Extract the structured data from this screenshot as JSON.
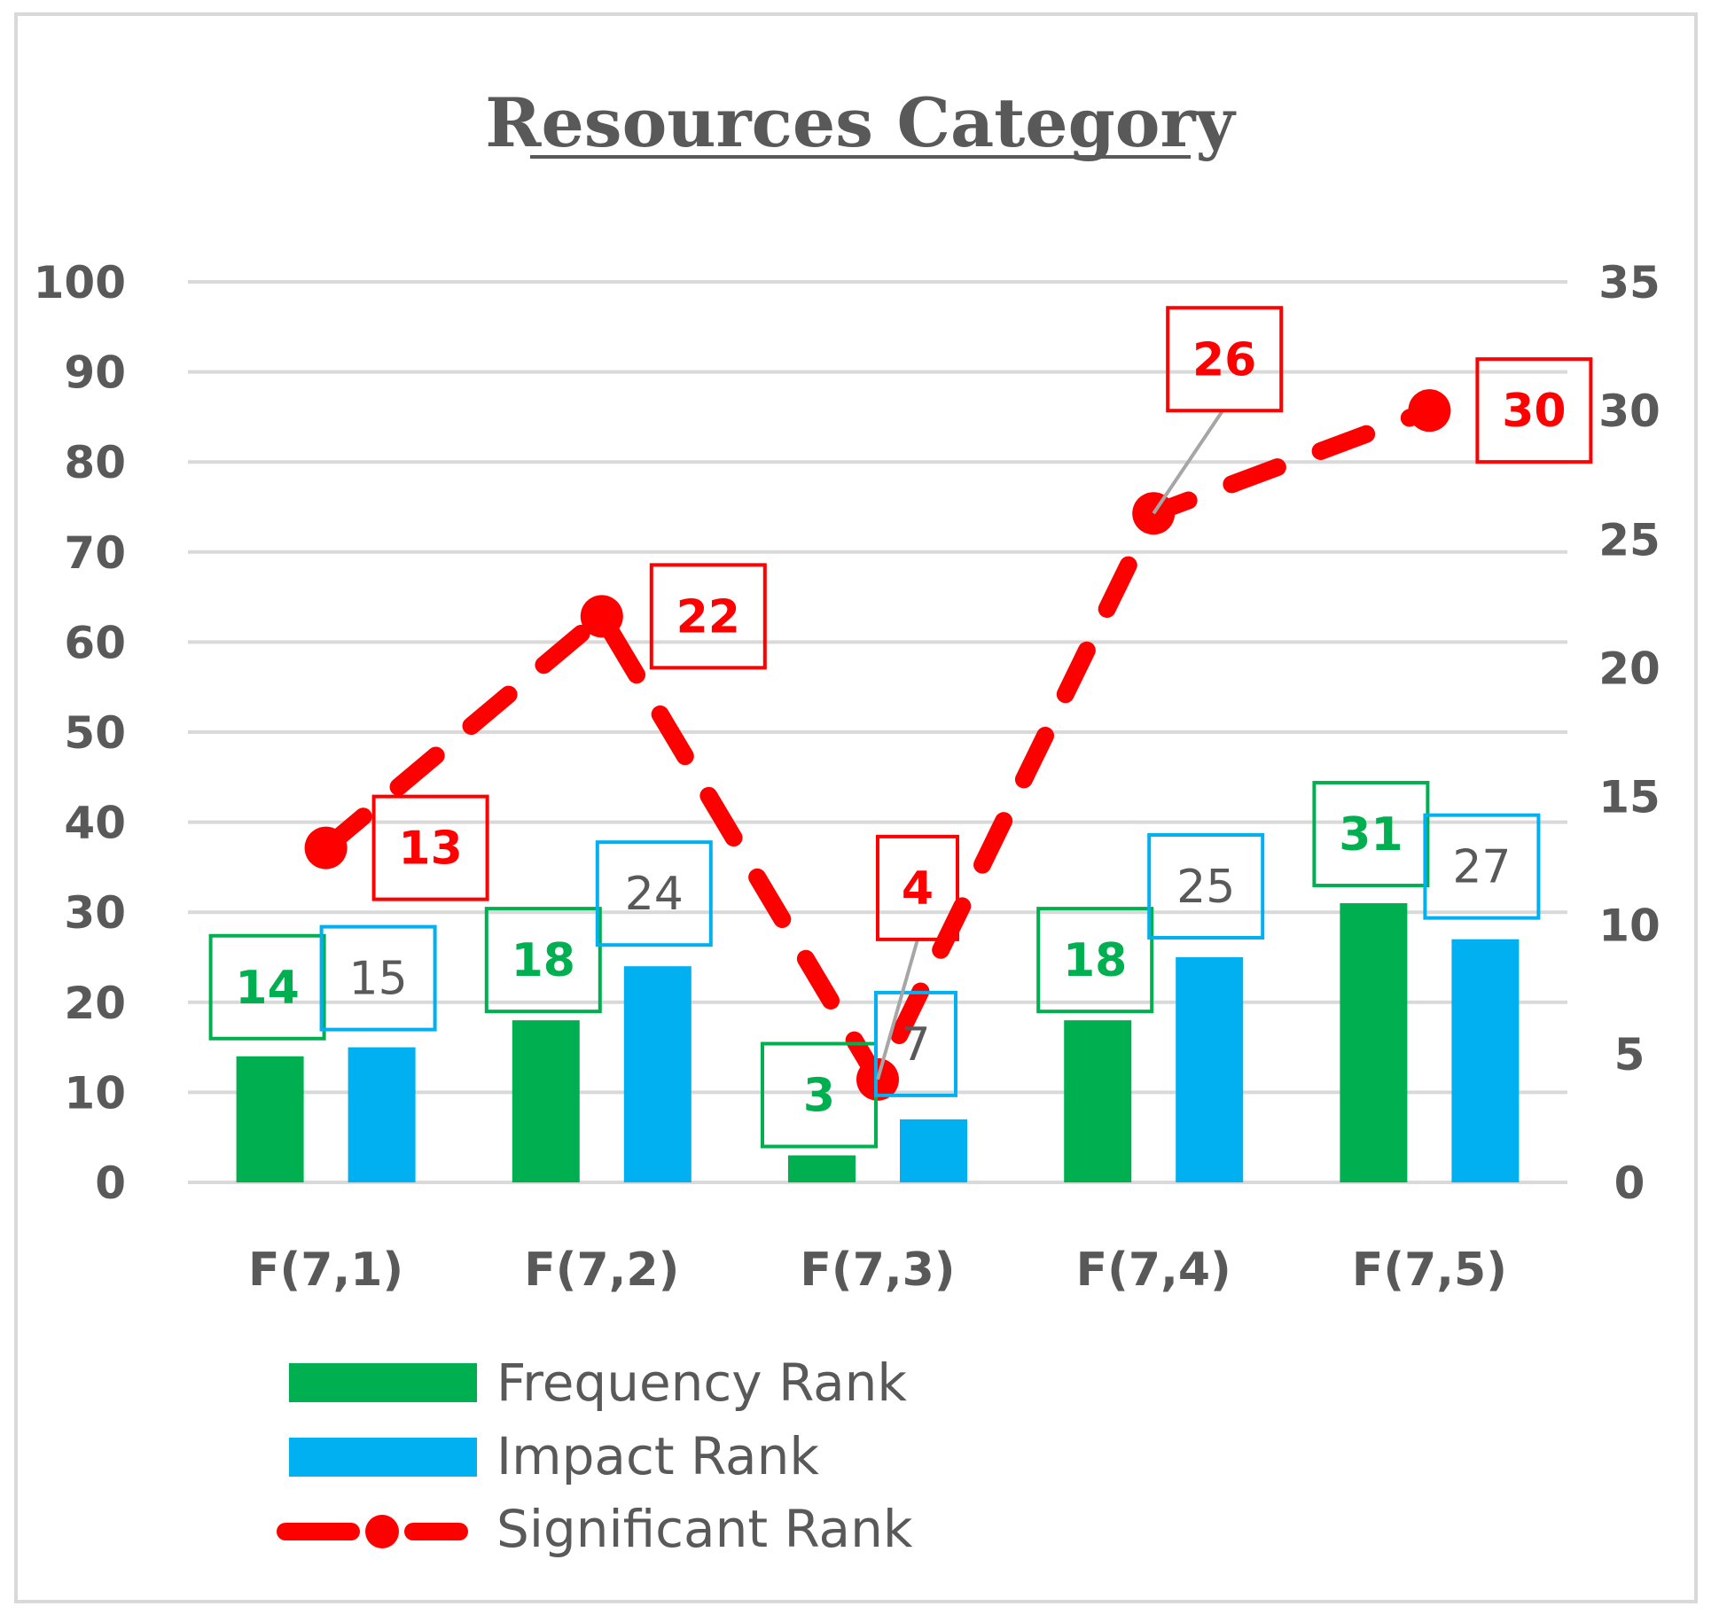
{
  "chart_data": {
    "type": "bar",
    "title": "Resources Category",
    "categories": [
      "F(7,1)",
      "F(7,2)",
      "F(7,3)",
      "F(7,4)",
      "F(7,5)"
    ],
    "series": [
      {
        "name": "Frequency Rank",
        "axis": "left",
        "kind": "bar",
        "values": [
          14,
          18,
          3,
          18,
          31
        ],
        "color": "#00b050",
        "label_color": "#00b050",
        "label_bold": true
      },
      {
        "name": "Impact Rank",
        "axis": "left",
        "kind": "bar",
        "values": [
          15,
          24,
          7,
          25,
          27
        ],
        "color": "#00b0f0",
        "label_color": "#595959",
        "label_bold": false
      },
      {
        "name": "Significant Rank",
        "axis": "right",
        "kind": "line",
        "values": [
          13,
          22,
          4,
          26,
          30
        ],
        "color": "#ff0000",
        "label_color": "#ff0000",
        "label_bold": true
      }
    ],
    "left_axis": {
      "min": 0,
      "max": 100,
      "step": 10,
      "ticks": [
        "0",
        "10",
        "20",
        "30",
        "40",
        "50",
        "60",
        "70",
        "80",
        "90",
        "100"
      ]
    },
    "right_axis": {
      "min": 0,
      "max": 35,
      "step": 5,
      "ticks": [
        "0",
        "5",
        "10",
        "15",
        "20",
        "25",
        "30",
        "35"
      ]
    },
    "grid": true,
    "legend_position": "bottom-left"
  },
  "colors": {
    "grid": "#d9d9d9",
    "axis_text": "#595959",
    "frame": "#d9d9d9",
    "leader": "#a6a6a6"
  }
}
